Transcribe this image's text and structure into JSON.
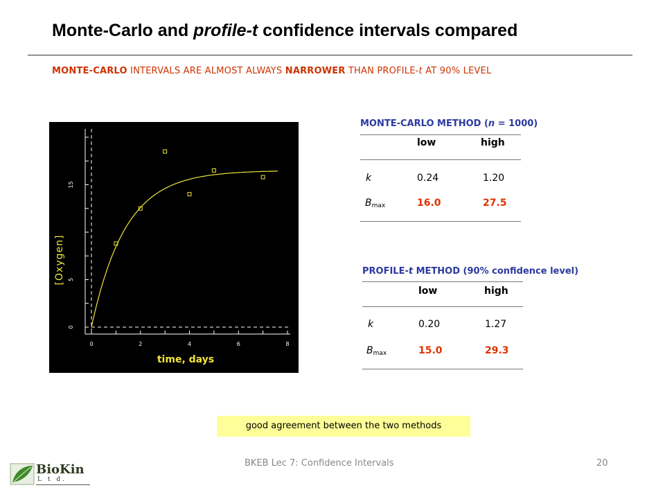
{
  "title": {
    "prefix": "Monte-Carlo and ",
    "emphasis": "profile-t",
    "suffix": " confidence intervals compared"
  },
  "subtitle": {
    "part1": "MONTE-CARLO",
    "part2": " INTERVALS ARE ALMOST ALWAYS ",
    "part3": "NARROWER",
    "part4": " THAN PROFILE-",
    "part5": "t",
    "part6": " AT 90% LEVEL"
  },
  "chart_data": {
    "type": "scatter",
    "xlabel": "time, days",
    "ylabel": "[Oxygen]",
    "xlim": [
      0,
      8
    ],
    "ylim": [
      0,
      20
    ],
    "x_ticks": [
      "0",
      "2",
      "4",
      "6",
      "8"
    ],
    "y_ticks": [
      "0",
      "5",
      "15"
    ],
    "points": [
      {
        "x": 1.0,
        "y": 8.8
      },
      {
        "x": 2.0,
        "y": 12.5
      },
      {
        "x": 3.0,
        "y": 18.5
      },
      {
        "x": 4.0,
        "y": 14.0
      },
      {
        "x": 5.0,
        "y": 16.5
      },
      {
        "x": 7.0,
        "y": 15.8
      }
    ],
    "fit_curve": {
      "model": "exponential rise",
      "B_max": 16.5,
      "k": 0.72,
      "x_range": [
        0,
        7.6
      ]
    },
    "colors": {
      "background": "#000000",
      "axes": "#ffffff",
      "curve": "#f0e63c",
      "markers": "#f0e63c"
    }
  },
  "monte_carlo": {
    "heading_prefix": "MONTE-CARLO METHOD (",
    "heading_n": "n",
    "heading_suffix": " = 1000)",
    "col_low": "low",
    "col_high": "high",
    "row_k_label": "k",
    "row_k_low": "0.24",
    "row_k_high": "1.20",
    "row_b_label": "B",
    "row_b_sub": "max",
    "row_b_low": "16.0",
    "row_b_high": "27.5"
  },
  "profile_t": {
    "heading_prefix": "PROFILE-",
    "heading_t": "t",
    "heading_suffix": " METHOD (90% confidence level)",
    "col_low": "low",
    "col_high": "high",
    "row_k_label": "k",
    "row_k_low": "0.20",
    "row_k_high": "1.27",
    "row_b_label": "B",
    "row_b_sub": "max",
    "row_b_low": "15.0",
    "row_b_high": "29.3"
  },
  "note": "good agreement between the two methods",
  "footer": {
    "text": "BKEB Lec 7: Confidence Intervals",
    "page": "20"
  },
  "logo": {
    "name": "BioKin",
    "sub": "L t d."
  },
  "colors": {
    "accent_red": "#dd3300",
    "heading_blue": "#2b3a9e",
    "note_bg": "#ffff99"
  }
}
